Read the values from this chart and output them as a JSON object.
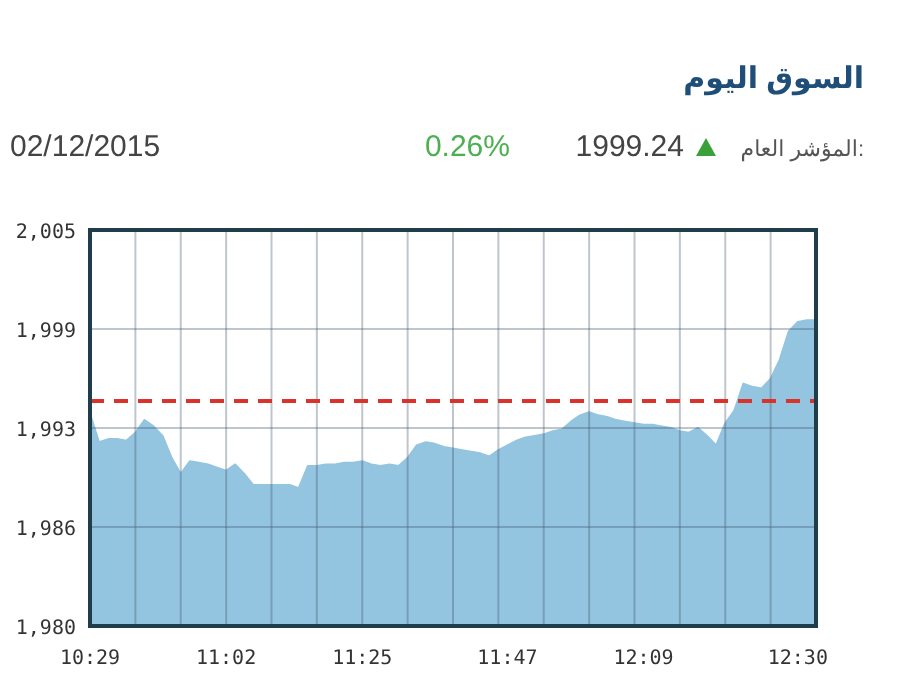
{
  "chart_data": {
    "type": "area",
    "title": "السوق اليوم",
    "annotations": [
      "المؤشر العام:",
      "1999.24",
      "0.26%",
      "02/12/2015"
    ],
    "categories": [
      "10:29",
      null,
      null,
      null,
      null,
      null,
      null,
      null,
      null,
      null,
      null,
      null,
      null,
      null,
      null,
      "11:02",
      null,
      null,
      null,
      null,
      null,
      null,
      null,
      null,
      null,
      null,
      null,
      null,
      null,
      null,
      "11:25",
      null,
      null,
      null,
      null,
      null,
      null,
      null,
      null,
      null,
      null,
      null,
      null,
      null,
      null,
      null,
      "11:47",
      null,
      null,
      null,
      null,
      null,
      null,
      null,
      null,
      null,
      null,
      null,
      null,
      null,
      null,
      "12:09",
      null,
      null,
      null,
      null,
      null,
      null,
      null,
      null,
      null,
      null,
      null,
      null,
      null,
      null,
      null,
      null,
      "12:30",
      null,
      null
    ],
    "values": [
      1993.4,
      1991.6,
      1991.8,
      1991.8,
      1991.7,
      1992.2,
      1993.0,
      1992.6,
      1992.0,
      1990.6,
      1989.6,
      1990.4,
      1990.3,
      1990.2,
      1990.0,
      1989.8,
      1990.2,
      1989.6,
      1988.9,
      1988.9,
      1988.9,
      1988.9,
      1988.9,
      1988.7,
      1990.1,
      1990.1,
      1990.2,
      1990.2,
      1990.3,
      1990.3,
      1990.4,
      1990.2,
      1990.1,
      1990.2,
      1990.1,
      1990.6,
      1991.4,
      1991.6,
      1991.5,
      1991.3,
      1991.2,
      1991.1,
      1991.0,
      1990.9,
      1990.7,
      1991.1,
      1991.4,
      1991.7,
      1991.9,
      1992.0,
      1992.1,
      1992.3,
      1992.4,
      1992.9,
      1993.3,
      1993.5,
      1993.3,
      1993.2,
      1993.0,
      1992.9,
      1992.8,
      1992.7,
      1992.7,
      1992.6,
      1992.5,
      1992.3,
      1992.2,
      1992.5,
      1992.0,
      1991.4,
      1992.8,
      1993.6,
      1995.3,
      1995.1,
      1995.0,
      1995.6,
      1996.8,
      1998.6,
      1999.2,
      1999.3,
      1999.3
    ],
    "color": "#93c4e0",
    "ylim": [
      1980,
      2005
    ],
    "yticks": [
      {
        "value": 1980,
        "label": "1,980"
      },
      {
        "value": 1986.25,
        "label": "1,986"
      },
      {
        "value": 1992.5,
        "label": "1,993"
      },
      {
        "value": 1998.75,
        "label": "1,999"
      },
      {
        "value": 2005,
        "label": "2,005"
      }
    ],
    "grid": true,
    "ref_lines": [
      {
        "axis": "y",
        "value": 1994.2,
        "color": "#d9342b",
        "line_style": "dashed"
      }
    ]
  }
}
